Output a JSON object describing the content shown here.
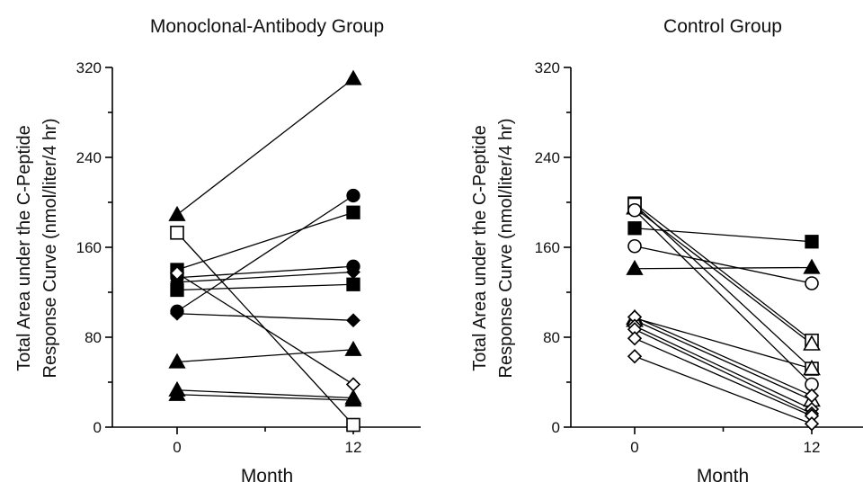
{
  "chart_data": [
    {
      "type": "line",
      "title": "Monoclonal-Antibody Group",
      "xlabel": "Month",
      "ylabel_lines": [
        "Total Area under the C-Peptide",
        "Response Curve (nmol/liter/4 hr)"
      ],
      "x": [
        0,
        12
      ],
      "x_ticks": [
        "0",
        "12"
      ],
      "y_ticks": [
        "0",
        "80",
        "160",
        "240",
        "320"
      ],
      "ylim": [
        0,
        320
      ],
      "series": [
        {
          "marker": "triangle",
          "filled": true,
          "values": [
            189,
            310
          ]
        },
        {
          "marker": "circle",
          "filled": true,
          "values": [
            103,
            206
          ]
        },
        {
          "marker": "square",
          "filled": true,
          "values": [
            140,
            191
          ]
        },
        {
          "marker": "circle",
          "filled": true,
          "values": [
            133,
            143
          ]
        },
        {
          "marker": "diamond",
          "filled": true,
          "values": [
            129,
            138
          ]
        },
        {
          "marker": "square",
          "filled": true,
          "values": [
            122,
            127
          ]
        },
        {
          "marker": "diamond",
          "filled": true,
          "values": [
            101,
            95
          ]
        },
        {
          "marker": "triangle",
          "filled": true,
          "values": [
            58,
            69
          ]
        },
        {
          "marker": "triangle",
          "filled": true,
          "values": [
            33,
            26
          ]
        },
        {
          "marker": "triangle",
          "filled": true,
          "values": [
            29,
            24
          ]
        },
        {
          "marker": "square",
          "filled": false,
          "values": [
            173,
            2
          ]
        },
        {
          "marker": "diamond",
          "filled": false,
          "values": [
            137,
            38
          ]
        }
      ]
    },
    {
      "type": "line",
      "title": "Control Group",
      "xlabel": "Month",
      "ylabel_lines": [
        "Total Area under the C-Peptide",
        "Response Curve (nmol/liter/4 hr)"
      ],
      "x": [
        0,
        12
      ],
      "x_ticks": [
        "0",
        "12"
      ],
      "y_ticks": [
        "0",
        "80",
        "160",
        "240",
        "320"
      ],
      "ylim": [
        0,
        320
      ],
      "series": [
        {
          "marker": "square",
          "filled": true,
          "values": [
            177,
            165
          ]
        },
        {
          "marker": "triangle",
          "filled": true,
          "values": [
            141,
            142
          ]
        },
        {
          "marker": "circle",
          "filled": false,
          "values": [
            161,
            128
          ]
        },
        {
          "marker": "square",
          "filled": false,
          "values": [
            199,
            77
          ]
        },
        {
          "marker": "triangle",
          "filled": false,
          "values": [
            195,
            74
          ]
        },
        {
          "marker": "square",
          "filled": false,
          "values": [
            198,
            52
          ]
        },
        {
          "marker": "triangle",
          "filled": false,
          "values": [
            97,
            52
          ]
        },
        {
          "marker": "circle",
          "filled": false,
          "values": [
            193,
            38
          ]
        },
        {
          "marker": "triangle",
          "filled": false,
          "values": [
            95,
            24
          ]
        },
        {
          "marker": "diamond",
          "filled": false,
          "values": [
            98,
            28
          ]
        },
        {
          "marker": "diamond",
          "filled": false,
          "values": [
            90,
            16
          ]
        },
        {
          "marker": "diamond",
          "filled": false,
          "values": [
            87,
            12
          ]
        },
        {
          "marker": "diamond",
          "filled": false,
          "values": [
            79,
            10
          ]
        },
        {
          "marker": "diamond",
          "filled": false,
          "values": [
            63,
            3
          ]
        }
      ]
    }
  ]
}
